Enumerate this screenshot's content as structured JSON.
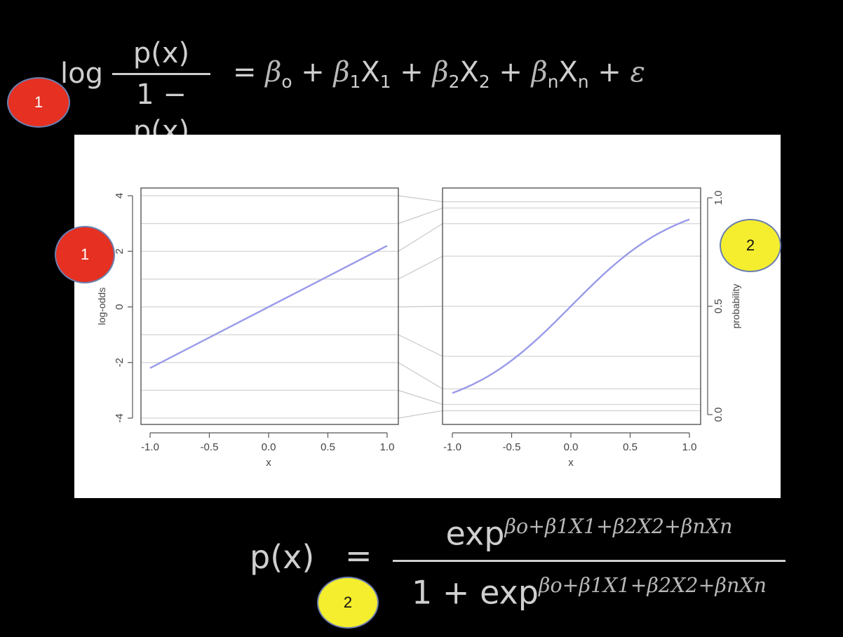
{
  "top_formula": {
    "log": "log",
    "numerator": "p(x)",
    "denominator": "1 − p(x)",
    "rhs": {
      "eq": "=",
      "b0": "β",
      "b0_sub": "o",
      "plus1": "+",
      "b1": "β",
      "b1_sub": "1",
      "x1": "X",
      "x1_sub": "1",
      "plus2": "+",
      "b2": "β",
      "b2_sub": "2",
      "x2": "X",
      "x2_sub": "2",
      "plus3": "+",
      "bn": "β",
      "bn_sub": "n",
      "xn": "X",
      "xn_sub": "n",
      "plus4": "+",
      "eps": "ε"
    }
  },
  "bottom_formula": {
    "lhs": "p(x)",
    "eq": "=",
    "num_exp": "exp",
    "den_one": "1 +",
    "den_exp": "exp",
    "exponent": "βo+β1X1+β2X2+βnXn"
  },
  "badges": {
    "top_left": "1",
    "left_axis": "1",
    "right_axis": "2",
    "bottom": "2"
  },
  "colors": {
    "badge_red": "#e53022",
    "badge_yellow": "#f4ee2e",
    "curve": "#9a9aea",
    "gridline": "#d4d4d4"
  },
  "chart_data": [
    {
      "type": "line",
      "panel": "left",
      "xlabel": "x",
      "ylabel": "log-odds",
      "xlim": [
        -1.0,
        1.0
      ],
      "ylim": [
        -4,
        4
      ],
      "xticks": [
        "-1.0",
        "-0.5",
        "0.0",
        "0.5",
        "1.0"
      ],
      "yticks": [
        "-4",
        "-2",
        "0",
        "2",
        "4"
      ],
      "y_tick_values": [
        -4,
        -2,
        0,
        2,
        4
      ],
      "x": [
        -1.0,
        1.0
      ],
      "y": [
        -2.2,
        2.2
      ],
      "gridlines_y": [
        -4,
        -3,
        -2,
        -1,
        0,
        1,
        2,
        3,
        4
      ]
    },
    {
      "type": "line",
      "panel": "right",
      "xlabel": "x",
      "ylabel": "probability",
      "xlim": [
        -1.0,
        1.0
      ],
      "ylim": [
        0.0,
        1.0
      ],
      "xticks": [
        "-1.0",
        "-0.5",
        "0.0",
        "0.5",
        "1.0"
      ],
      "yticks": [
        "0.0",
        "0.5",
        "1.0"
      ],
      "y_tick_values": [
        0.0,
        0.5,
        1.0
      ],
      "curve": "y = 1/(1+exp(-2.2x))",
      "gridlines_y": [
        0.018,
        0.047,
        0.119,
        0.269,
        0.5,
        0.731,
        0.881,
        0.953,
        0.982
      ]
    }
  ]
}
